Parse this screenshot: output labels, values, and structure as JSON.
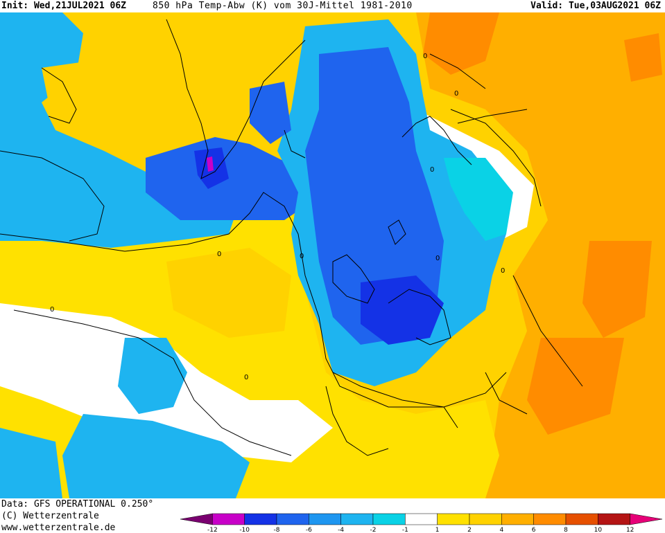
{
  "header": {
    "init": "Init: Wed,21JUL2021 06Z",
    "description": "850 hPa Temp-Abw (K) vom 30J-Mittel 1981-2010",
    "valid": "Valid: Tue,03AUG2021 06Z"
  },
  "footer": {
    "data_source": "Data: GFS OPERATIONAL 0.250°",
    "copyright": "(C) Wetterzentrale",
    "website": "www.wetterzentrale.de"
  },
  "legend": {
    "ticks": [
      "-12",
      "-10",
      "-8",
      "-6",
      "-4",
      "-2",
      "-1",
      "1",
      "2",
      "4",
      "6",
      "8",
      "10",
      "12"
    ],
    "colors": [
      "#7a0070",
      "#c800c8",
      "#1432e6",
      "#1f64ee",
      "#1e96f0",
      "#1eb4f0",
      "#0ad2e6",
      "#ffffff",
      "#ffe100",
      "#ffd200",
      "#ffaf00",
      "#ff8c00",
      "#e65000",
      "#b41414",
      "#e60078"
    ]
  },
  "map": {
    "colors": {
      "sea_cold": "#1eb4f0",
      "cold": "#1f64ee",
      "very_cold": "#1432e6",
      "extreme_cold": "#c800c8",
      "cyan": "#0ad2e6",
      "neutral": "#ffffff",
      "warm1": "#ffe100",
      "warm2": "#ffd200",
      "warm3": "#ffaf00",
      "warm4": "#ff8c00",
      "coast": "#000000"
    },
    "contour_label": "0"
  }
}
